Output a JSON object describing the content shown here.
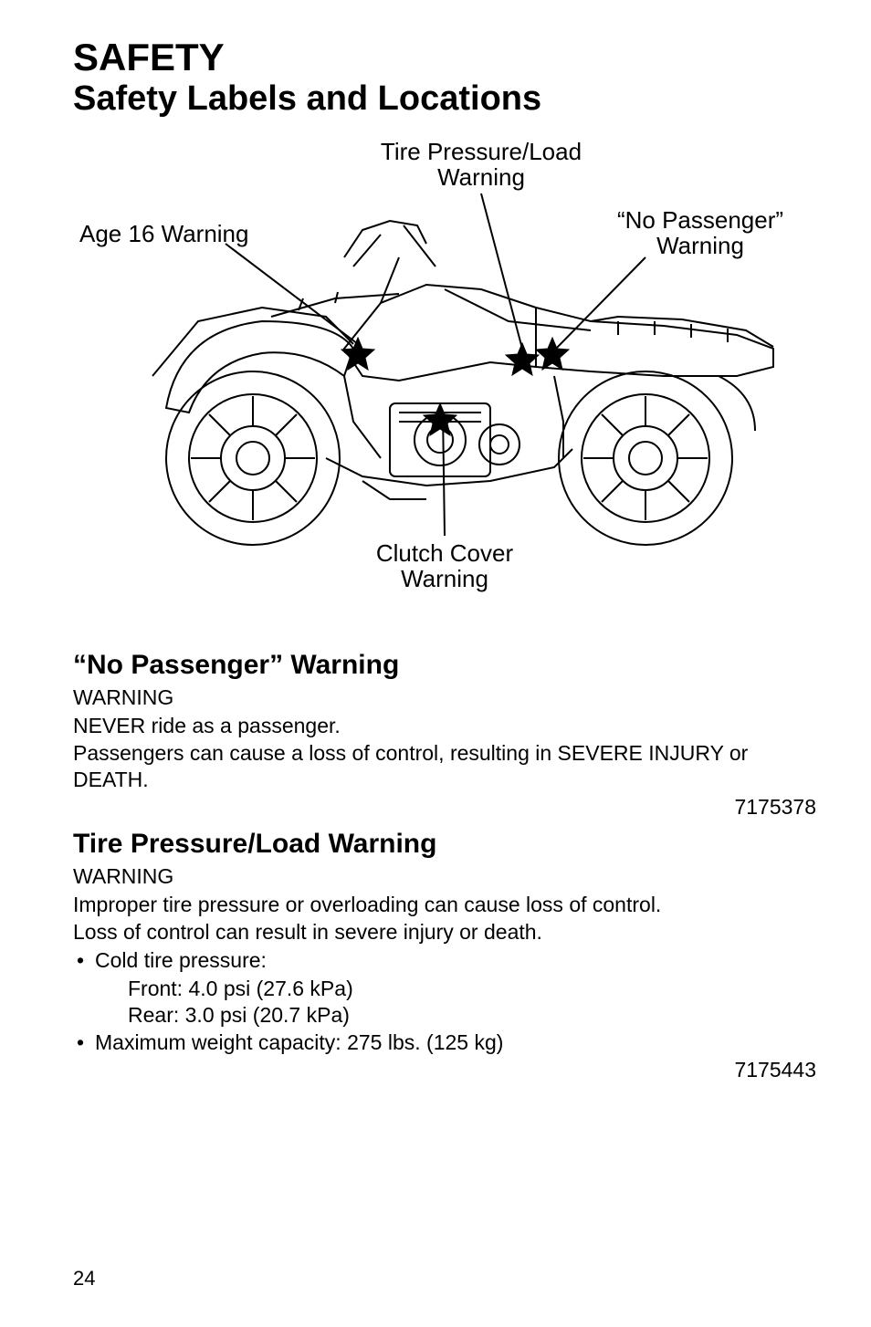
{
  "header": {
    "title_main": "SAFETY",
    "title_sub": "Safety Labels and Locations"
  },
  "diagram": {
    "labels": {
      "tire_pressure": "Tire Pressure/Load\nWarning",
      "age_16": "Age 16 Warning",
      "no_passenger": "“No Passenger”\nWarning",
      "clutch_cover": "Clutch Cover\nWarning"
    }
  },
  "sections": {
    "no_passenger": {
      "heading": "“No Passenger” Warning",
      "warning_label": "WARNING",
      "line1": "NEVER ride as a passenger.",
      "line2": "Passengers can cause a loss of control, resulting in SEVERE INJURY or DEATH.",
      "part_number": "7175378"
    },
    "tire_pressure": {
      "heading": "Tire Pressure/Load Warning",
      "warning_label": "WARNING",
      "line1": "Improper tire pressure or overloading can cause loss of control.",
      "line2": "Loss of control can result in severe injury or death.",
      "bullets": {
        "cold_tire": "Cold tire pressure:",
        "front": "Front: 4.0 psi (27.6 kPa)",
        "rear": "Rear: 3.0 psi (20.7 kPa)",
        "max_weight": "Maximum weight capacity: 275 lbs. (125 kg)"
      },
      "part_number": "7175443"
    }
  },
  "page_number": "24",
  "colors": {
    "text": "#000000",
    "background": "#ffffff",
    "line": "#000000"
  }
}
